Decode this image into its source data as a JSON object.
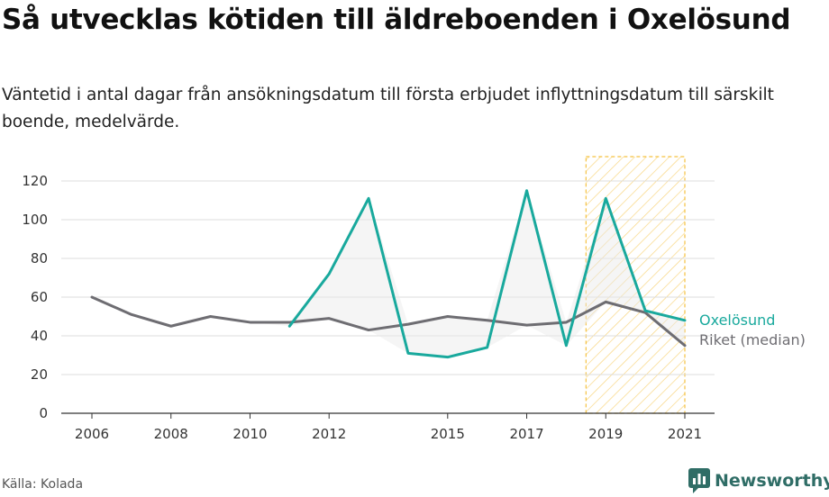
{
  "title": "Så utvecklas kötiden till äldreboenden i Oxelösund",
  "subtitle": "Väntetid i antal dagar från ansökningsdatum till första erbjudet inflyttningsdatum till särskilt boende, medelvärde.",
  "source": "Källa: Kolada",
  "brand": "Newsworthy",
  "colors": {
    "oxelosund": "#19a99d",
    "riket": "#6e6d72",
    "highlight": "#f5c242"
  },
  "chart_data": {
    "type": "line",
    "x": [
      2006,
      2007,
      2008,
      2009,
      2010,
      2011,
      2012,
      2013,
      2014,
      2015,
      2016,
      2017,
      2018,
      2019,
      2020,
      2021
    ],
    "x_ticks": [
      "2006",
      "2008",
      "2010",
      "2012",
      "2015",
      "2017",
      "2019",
      "2021"
    ],
    "y_ticks": [
      "0",
      "20",
      "40",
      "60",
      "80",
      "100",
      "120"
    ],
    "ylim": [
      0,
      120
    ],
    "grid": true,
    "highlight_range": [
      2018.5,
      2021
    ],
    "series": [
      {
        "name": "Oxelösund",
        "values": [
          null,
          null,
          null,
          null,
          null,
          45,
          72,
          111,
          31,
          29,
          34,
          115,
          35,
          111,
          53,
          48
        ]
      },
      {
        "name": "Riket (median)",
        "values": [
          60,
          51,
          45,
          50,
          47,
          47,
          49,
          43,
          46,
          50,
          48,
          45.5,
          47,
          57.5,
          52,
          35
        ]
      }
    ]
  }
}
